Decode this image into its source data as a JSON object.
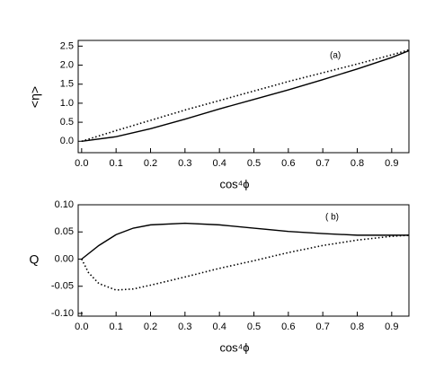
{
  "chart_data": [
    {
      "type": "line",
      "annotation": "(a)",
      "xlabel": "cos⁴ϕ",
      "ylabel": "<η>",
      "xlim": [
        -0.01,
        0.95
      ],
      "ylim": [
        -0.3,
        2.65
      ],
      "xticks": [
        {
          "value": 0,
          "label": "0.0"
        },
        0.1,
        0.2,
        0.3,
        0.4,
        0.5,
        0.6,
        0.7,
        0.8,
        0.9
      ],
      "yticks": [
        {
          "value": 0,
          "label": "0.0"
        },
        0.5,
        {
          "value": 1,
          "label": "1.0"
        },
        1.5,
        {
          "value": 2,
          "label": "2.0"
        },
        2.5
      ],
      "series": [
        {
          "style": "solid",
          "color": "#000000",
          "x": [
            0,
            0.1,
            0.2,
            0.3,
            0.4,
            0.5,
            0.6,
            0.7,
            0.8,
            0.9,
            0.95
          ],
          "values": [
            0,
            0.12,
            0.33,
            0.58,
            0.85,
            1.1,
            1.35,
            1.62,
            1.9,
            2.2,
            2.38
          ]
        },
        {
          "style": "dotted",
          "color": "#000000",
          "x": [
            0,
            0.1,
            0.2,
            0.3,
            0.4,
            0.5,
            0.6,
            0.7,
            0.8,
            0.9,
            0.95
          ],
          "values": [
            0,
            0.28,
            0.55,
            0.82,
            1.07,
            1.32,
            1.57,
            1.8,
            2.03,
            2.27,
            2.4
          ]
        }
      ]
    },
    {
      "type": "line",
      "annotation": "( b)",
      "xlabel": "cos⁴ϕ",
      "ylabel": "Q",
      "xlim": [
        -0.01,
        0.95
      ],
      "ylim": [
        -0.105,
        0.1
      ],
      "xticks": [
        {
          "value": 0,
          "label": "0.0"
        },
        0.1,
        0.2,
        0.3,
        0.4,
        0.5,
        0.6,
        0.7,
        0.8,
        0.9
      ],
      "yticks": [
        {
          "value": -0.1,
          "label": "-0.10"
        },
        {
          "value": -0.05,
          "label": "-0.05"
        },
        {
          "value": 0,
          "label": "0.00"
        },
        {
          "value": 0.05,
          "label": "0.05"
        },
        {
          "value": 0.1,
          "label": "0.10"
        }
      ],
      "series": [
        {
          "style": "solid",
          "color": "#000000",
          "x": [
            0,
            0.05,
            0.1,
            0.15,
            0.2,
            0.3,
            0.4,
            0.5,
            0.6,
            0.7,
            0.8,
            0.9,
            0.95
          ],
          "values": [
            0,
            0.025,
            0.045,
            0.057,
            0.063,
            0.066,
            0.063,
            0.057,
            0.051,
            0.047,
            0.044,
            0.044,
            0.044
          ]
        },
        {
          "style": "dotted",
          "color": "#000000",
          "x": [
            0,
            0.02,
            0.05,
            0.1,
            0.15,
            0.2,
            0.3,
            0.4,
            0.5,
            0.6,
            0.7,
            0.8,
            0.9,
            0.95
          ],
          "values": [
            0,
            -0.025,
            -0.045,
            -0.057,
            -0.055,
            -0.048,
            -0.033,
            -0.017,
            -0.003,
            0.012,
            0.025,
            0.035,
            0.042,
            0.044
          ]
        }
      ]
    }
  ]
}
